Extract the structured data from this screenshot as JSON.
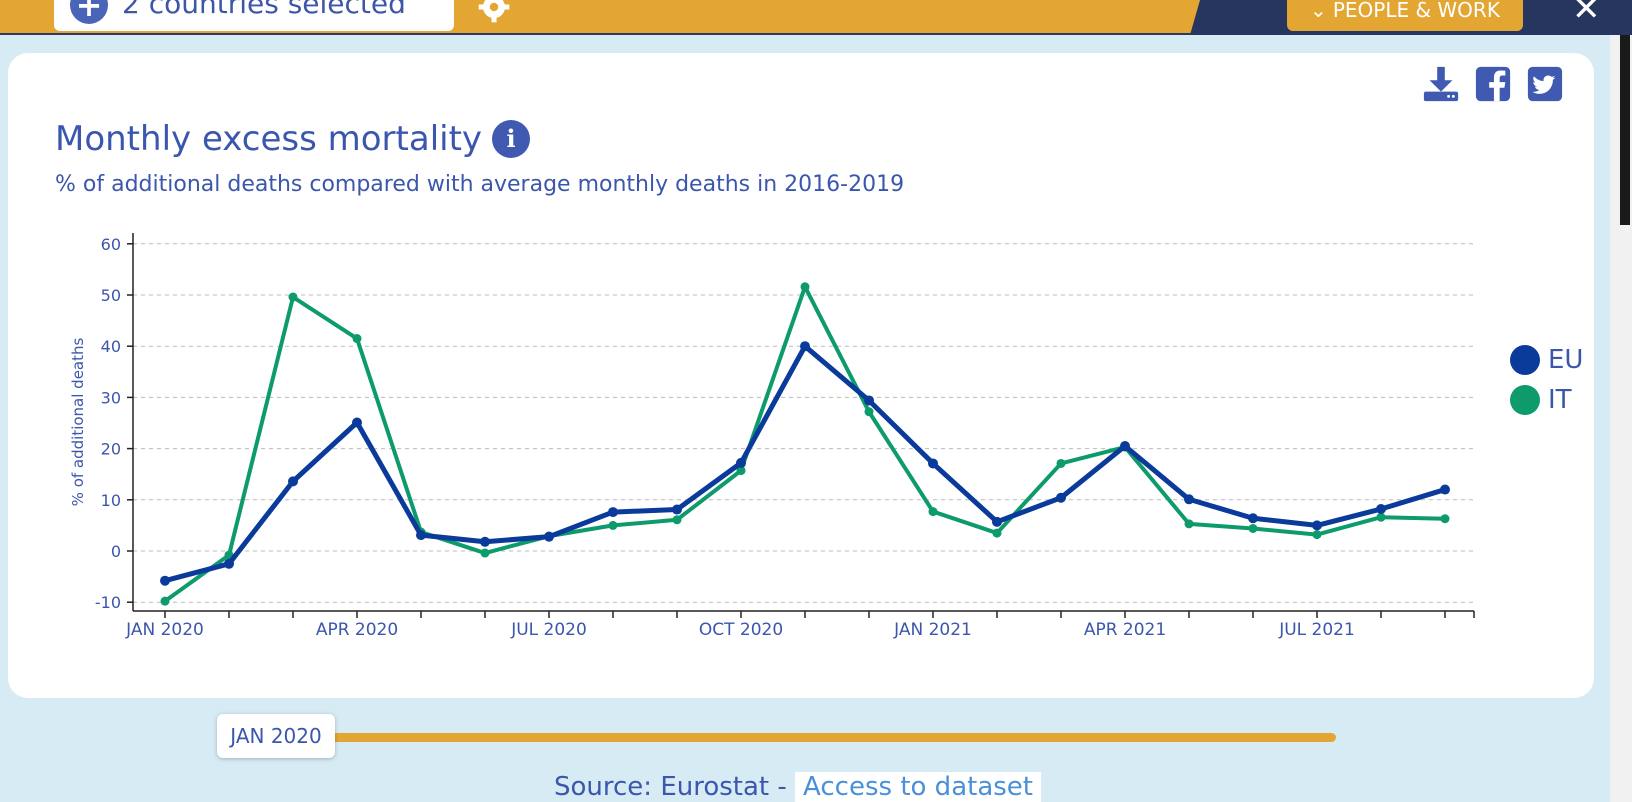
{
  "header": {
    "country_selector_label": "2 countries selected",
    "category_label": "PEOPLE & WORK"
  },
  "chart_title": "Monthly excess mortality",
  "chart_subtitle": "% of additional deaths compared with average monthly deaths in 2016-2019",
  "slider": {
    "current_label": "JAN 2020"
  },
  "source": {
    "prefix": "Source: Eurostat - ",
    "link_label": "Access to dataset"
  },
  "colors": {
    "EU": "#0a3a9a",
    "IT": "#0d9b6c",
    "accent": "#e4a633",
    "text": "#3b56ad"
  },
  "chart_data": {
    "type": "line",
    "title": "Monthly excess mortality",
    "subtitle": "% of additional deaths compared with average monthly deaths in 2016-2019",
    "ylabel": "% of additional deaths",
    "xlabel": "",
    "ylim": [
      -12,
      60
    ],
    "yticks": [
      60,
      50,
      40,
      30,
      20,
      10,
      0,
      -10
    ],
    "categories": [
      "JAN 2020",
      "FEB 2020",
      "MAR 2020",
      "APR 2020",
      "MAY 2020",
      "JUN 2020",
      "JUL 2020",
      "AUG 2020",
      "SEP 2020",
      "OCT 2020",
      "NOV 2020",
      "DEC 2020",
      "JAN 2021",
      "FEB 2021",
      "MAR 2021",
      "APR 2021",
      "MAY 2021",
      "JUN 2021",
      "JUL 2021",
      "AUG 2021",
      "SEP 2021"
    ],
    "xtick_labels": [
      "JAN 2020",
      "APR 2020",
      "JUL 2020",
      "OCT 2020",
      "JAN 2021",
      "APR 2021",
      "JUL 2021"
    ],
    "grid": true,
    "legend_position": "right",
    "series": [
      {
        "name": "EU",
        "values": [
          -5.8,
          -2.5,
          13.6,
          25.1,
          3.1,
          1.8,
          2.8,
          7.6,
          8.1,
          17.2,
          40.0,
          29.4,
          17.1,
          5.7,
          10.4,
          20.5,
          10.1,
          6.4,
          5.0,
          8.2,
          12.0
        ]
      },
      {
        "name": "IT",
        "values": [
          -9.8,
          -0.8,
          49.6,
          41.5,
          3.7,
          -0.4,
          2.9,
          5.0,
          6.1,
          15.7,
          51.6,
          27.2,
          7.7,
          3.5,
          17.1,
          20.3,
          5.3,
          4.4,
          3.2,
          6.6,
          6.3
        ]
      }
    ]
  }
}
